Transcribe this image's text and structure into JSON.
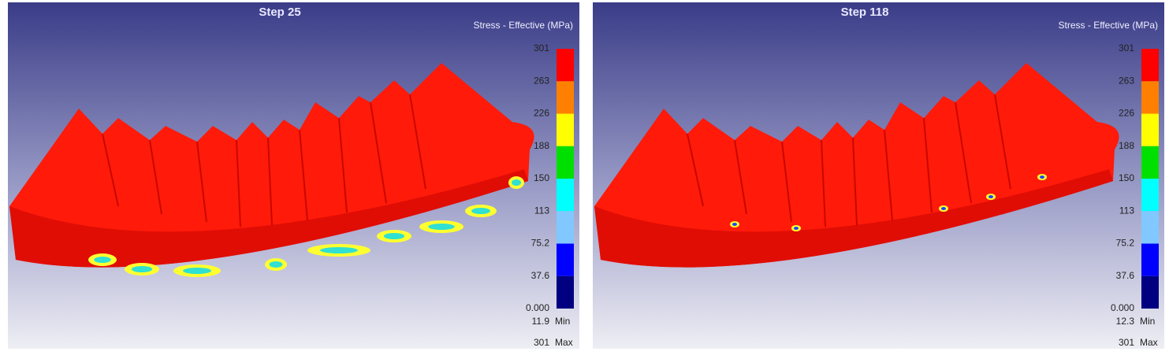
{
  "panels": [
    {
      "title": "Step 25",
      "legend_title": "Stress - Effective (MPa)",
      "scale_labels": [
        "301",
        "263",
        "226",
        "188",
        "150",
        "113",
        "75.2",
        "37.6",
        "0.000"
      ],
      "min": {
        "value": "11.9",
        "label": "Min"
      },
      "max": {
        "value": "301",
        "label": "Max"
      }
    },
    {
      "title": "Step 118",
      "legend_title": "Stress - Effective (MPa)",
      "scale_labels": [
        "301",
        "263",
        "226",
        "188",
        "150",
        "113",
        "75.2",
        "37.6",
        "0.000"
      ],
      "min": {
        "value": "12.3",
        "label": "Min"
      },
      "max": {
        "value": "301",
        "label": "Max"
      }
    }
  ],
  "legend_colors": [
    "#ff0000",
    "#ff8000",
    "#ffff00",
    "#00e000",
    "#00ffff",
    "#80c8ff",
    "#0000ff",
    "#000080"
  ]
}
